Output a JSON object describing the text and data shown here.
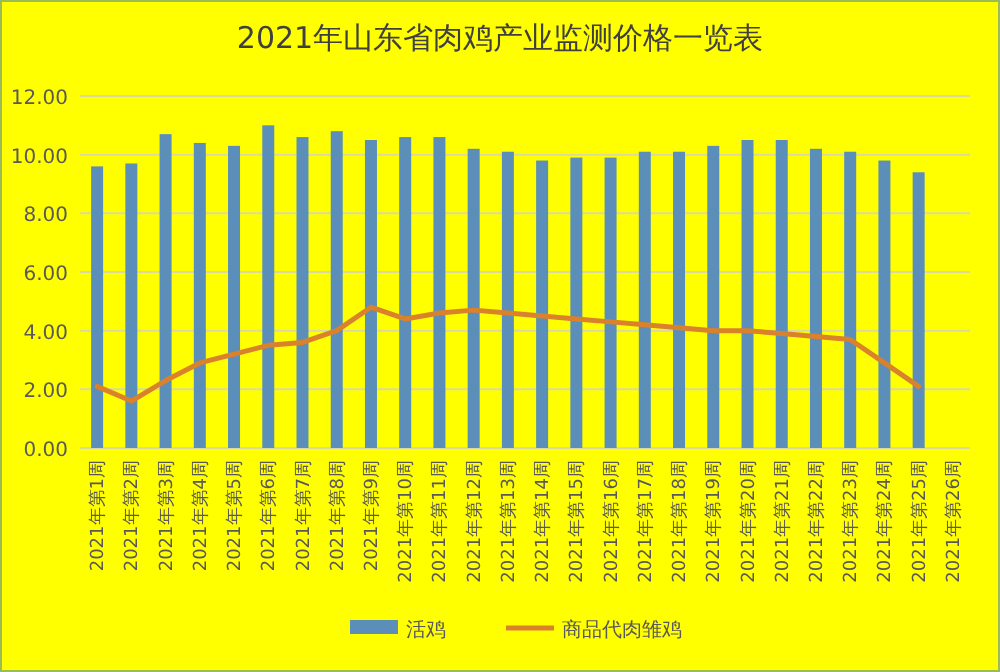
{
  "chart_data": {
    "type": "bar",
    "title": "2021年山东省肉鸡产业监测价格一览表",
    "categories": [
      "2021年第1周",
      "2021年第2周",
      "2021年第3周",
      "2021年第4周",
      "2021年第5周",
      "2021年第6周",
      "2021年第7周",
      "2021年第8周",
      "2021年第9周",
      "2021年第10周",
      "2021年第11周",
      "2021年第12周",
      "2021年第13周",
      "2021年第14周",
      "2021年第15周",
      "2021年第16周",
      "2021年第17周",
      "2021年第18周",
      "2021年第19周",
      "2021年第20周",
      "2021年第21周",
      "2021年第22周",
      "2021年第23周",
      "2021年第24周",
      "2021年第25周",
      "2021年第26周"
    ],
    "series": [
      {
        "name": "活鸡",
        "color": "#5b8fba",
        "values": [
          9.6,
          9.7,
          10.7,
          10.4,
          10.3,
          11.0,
          10.6,
          10.8,
          10.5,
          10.6,
          10.6,
          10.2,
          10.1,
          9.8,
          9.9,
          9.9,
          10.1,
          10.1,
          10.3,
          10.5,
          10.5,
          10.2,
          10.1,
          9.8,
          9.4,
          null
        ]
      },
      {
        "name": "商品代肉雏鸡",
        "type": "line",
        "color": "#d9822b",
        "values": [
          2.1,
          1.6,
          2.3,
          2.9,
          3.2,
          3.5,
          3.6,
          4.0,
          4.8,
          4.4,
          4.6,
          4.7,
          4.6,
          4.5,
          4.4,
          4.3,
          4.2,
          4.1,
          4.0,
          4.0,
          3.9,
          3.8,
          3.7,
          2.9,
          2.1,
          null
        ]
      }
    ],
    "ylim": [
      0,
      12
    ],
    "yticks": [
      {
        "value": 0,
        "label": "0.00"
      },
      {
        "value": 2,
        "label": "2.00"
      },
      {
        "value": 4,
        "label": "4.00"
      },
      {
        "value": 6,
        "label": "6.00"
      },
      {
        "value": 8,
        "label": "8.00"
      },
      {
        "value": 10,
        "label": "10.00"
      },
      {
        "value": 12,
        "label": "12.00"
      }
    ],
    "grid": "y",
    "legend": "bottom"
  }
}
